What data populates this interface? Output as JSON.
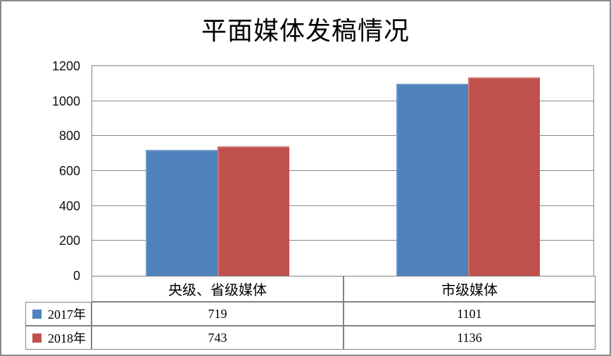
{
  "chart_data": {
    "type": "bar",
    "title": "平面媒体发稿情况",
    "categories": [
      "央级、省级媒体",
      "市级媒体"
    ],
    "series": [
      {
        "name": "2017年",
        "color": "#4f81bd",
        "values": [
          719,
          1101
        ]
      },
      {
        "name": "2018年",
        "color": "#c0504d",
        "values": [
          743,
          1136
        ]
      }
    ],
    "ylim": [
      0,
      1200
    ],
    "yticks": [
      0,
      200,
      400,
      600,
      800,
      1000,
      1200
    ],
    "xlabel": "",
    "ylabel": "",
    "grid": "horizontal-major",
    "legend_position": "table-below-left"
  },
  "colors": {
    "background": "#ffffff",
    "outer_border": "#8a8a8a",
    "gridline": "#888888",
    "table_border": "#828282",
    "text": "#000000",
    "series_2017": "#4f81bd",
    "series_2018": "#c0504d"
  }
}
